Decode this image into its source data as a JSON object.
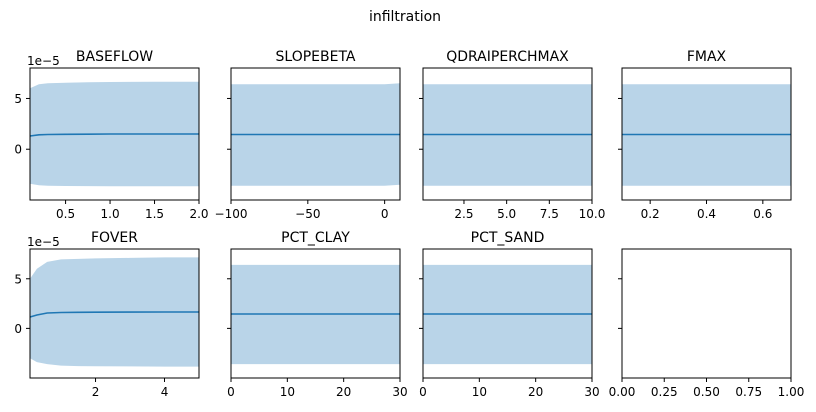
{
  "figure": {
    "suptitle": "infiltration"
  },
  "colors": {
    "line": "#1f77b4",
    "band": "#b9d4e8",
    "axes": "#000000"
  },
  "chart_data": [
    {
      "type": "line",
      "title": "BASEFLOW",
      "x": [
        0.1,
        0.2,
        0.3,
        0.5,
        0.75,
        1.0,
        1.5,
        2.0
      ],
      "y": [
        1.3,
        1.42,
        1.45,
        1.47,
        1.48,
        1.5,
        1.5,
        1.5
      ],
      "upper": [
        6.0,
        6.4,
        6.5,
        6.55,
        6.6,
        6.62,
        6.65,
        6.65
      ],
      "lower": [
        -3.4,
        -3.55,
        -3.6,
        -3.62,
        -3.63,
        -3.64,
        -3.65,
        -3.65
      ],
      "xlim": [
        0.1,
        2.0
      ],
      "ylim": [
        -5.0,
        8.0
      ],
      "xticks": [
        0.5,
        1.0,
        1.5,
        2.0
      ],
      "xticklabels": [
        "0.5",
        "1.0",
        "1.5",
        "2.0"
      ],
      "yticks": [
        0,
        5
      ],
      "yticklabels": [
        "0",
        "5"
      ],
      "yoffset": "1e−5"
    },
    {
      "type": "line",
      "title": "SLOPEBETA",
      "x": [
        -100,
        -50,
        0,
        5,
        10
      ],
      "y": [
        1.45,
        1.45,
        1.45,
        1.45,
        1.45
      ],
      "upper": [
        6.4,
        6.4,
        6.4,
        6.45,
        6.5
      ],
      "lower": [
        -3.6,
        -3.6,
        -3.6,
        -3.55,
        -3.5
      ],
      "xlim": [
        -100,
        10
      ],
      "ylim": [
        -5.0,
        8.0
      ],
      "xticks": [
        -100,
        -50,
        0
      ],
      "xticklabels": [
        "−100",
        "−50",
        "0"
      ],
      "yticks": [
        0,
        5
      ],
      "yticklabels": [
        "",
        ""
      ]
    },
    {
      "type": "line",
      "title": "QDRAIPERCHMAX",
      "x": [
        0.1,
        5.0,
        10.0
      ],
      "y": [
        1.45,
        1.45,
        1.45
      ],
      "upper": [
        6.4,
        6.4,
        6.4
      ],
      "lower": [
        -3.6,
        -3.6,
        -3.6
      ],
      "xlim": [
        0.1,
        10.0
      ],
      "ylim": [
        -5.0,
        8.0
      ],
      "xticks": [
        2.5,
        5.0,
        7.5,
        10.0
      ],
      "xticklabels": [
        "2.5",
        "5.0",
        "7.5",
        "10.0"
      ],
      "yticks": [
        0,
        5
      ],
      "yticklabels": [
        "",
        ""
      ]
    },
    {
      "type": "line",
      "title": "FMAX",
      "x": [
        0.1,
        0.4,
        0.7
      ],
      "y": [
        1.45,
        1.45,
        1.45
      ],
      "upper": [
        6.4,
        6.4,
        6.4
      ],
      "lower": [
        -3.6,
        -3.6,
        -3.6
      ],
      "xlim": [
        0.1,
        0.7
      ],
      "ylim": [
        -5.0,
        8.0
      ],
      "xticks": [
        0.2,
        0.4,
        0.6
      ],
      "xticklabels": [
        "0.2",
        "0.4",
        "0.6"
      ],
      "yticks": [
        0,
        5
      ],
      "yticklabels": [
        "",
        ""
      ]
    },
    {
      "type": "line",
      "title": "FOVER",
      "x": [
        0.1,
        0.3,
        0.6,
        1.0,
        1.5,
        2.0,
        3.0,
        4.0,
        5.0
      ],
      "y": [
        1.15,
        1.35,
        1.55,
        1.6,
        1.62,
        1.63,
        1.64,
        1.65,
        1.65
      ],
      "upper": [
        5.0,
        6.0,
        6.7,
        6.95,
        7.0,
        7.05,
        7.1,
        7.15,
        7.15
      ],
      "lower": [
        -3.0,
        -3.4,
        -3.6,
        -3.75,
        -3.8,
        -3.82,
        -3.83,
        -3.85,
        -3.85
      ],
      "xlim": [
        0.1,
        5.0
      ],
      "ylim": [
        -5.0,
        8.0
      ],
      "xticks": [
        2,
        4
      ],
      "xticklabels": [
        "2",
        "4"
      ],
      "yticks": [
        0,
        5
      ],
      "yticklabels": [
        "0",
        "5"
      ],
      "yoffset": "1e−5"
    },
    {
      "type": "line",
      "title": "PCT_CLAY",
      "x": [
        0,
        15,
        30
      ],
      "y": [
        1.45,
        1.45,
        1.45
      ],
      "upper": [
        6.4,
        6.4,
        6.4
      ],
      "lower": [
        -3.6,
        -3.6,
        -3.6
      ],
      "xlim": [
        0,
        30
      ],
      "ylim": [
        -5.0,
        8.0
      ],
      "xticks": [
        0,
        10,
        20,
        30
      ],
      "xticklabels": [
        "0",
        "10",
        "20",
        "30"
      ],
      "yticks": [
        0,
        5
      ],
      "yticklabels": [
        "",
        ""
      ]
    },
    {
      "type": "line",
      "title": "PCT_SAND",
      "x": [
        0,
        15,
        30
      ],
      "y": [
        1.45,
        1.45,
        1.45
      ],
      "upper": [
        6.4,
        6.4,
        6.4
      ],
      "lower": [
        -3.6,
        -3.6,
        -3.6
      ],
      "xlim": [
        0,
        30
      ],
      "ylim": [
        -5.0,
        8.0
      ],
      "xticks": [
        0,
        10,
        20,
        30
      ],
      "xticklabels": [
        "0",
        "10",
        "20",
        "30"
      ],
      "yticks": [
        0,
        5
      ],
      "yticklabels": [
        "",
        ""
      ]
    },
    {
      "type": "line",
      "title": "",
      "x": [],
      "y": [],
      "upper": [],
      "lower": [],
      "xlim": [
        0.0,
        1.0
      ],
      "ylim": [
        -5.0,
        8.0
      ],
      "xticks": [
        0.0,
        0.25,
        0.5,
        0.75,
        1.0
      ],
      "xticklabels": [
        "0.00",
        "0.25",
        "0.50",
        "0.75",
        "1.00"
      ],
      "yticks": [
        0,
        5
      ],
      "yticklabels": [
        "",
        ""
      ]
    }
  ]
}
